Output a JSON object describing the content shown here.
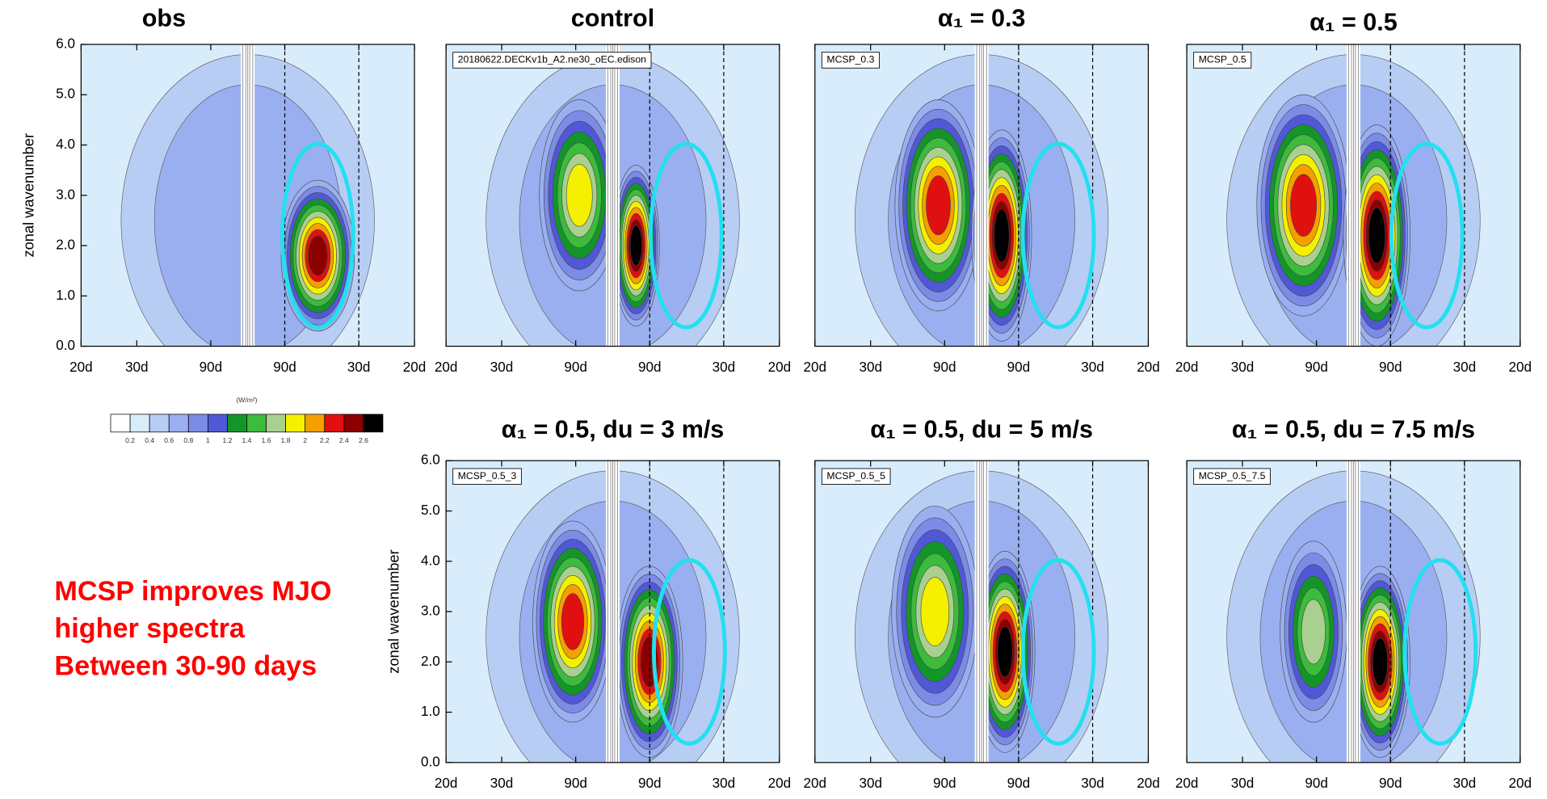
{
  "chart_data": [
    {
      "type": "contour",
      "title": "obs",
      "y_label": "zonal wavenumber",
      "xlim": [
        -0.05,
        0.05
      ],
      "xticks": [
        {
          "value": -0.05,
          "label": "20d"
        },
        {
          "value": -0.0333,
          "label": "30d"
        },
        {
          "value": -0.0111,
          "label": "90d"
        },
        {
          "value": 0.0111,
          "label": "90d"
        },
        {
          "value": 0.0333,
          "label": "30d"
        },
        {
          "value": 0.05,
          "label": "20d"
        }
      ],
      "ylim": [
        0,
        6
      ],
      "yticks": [
        {
          "value": 0,
          "label": "0.0"
        },
        {
          "value": 1,
          "label": "1.0"
        },
        {
          "value": 2,
          "label": "2.0"
        },
        {
          "value": 3,
          "label": "3.0"
        },
        {
          "value": 4,
          "label": "4.0"
        },
        {
          "value": 5,
          "label": "5.0"
        },
        {
          "value": 6,
          "label": "6.0"
        }
      ]
    },
    {
      "type": "contour",
      "title": "control",
      "label": "20180622.DECKv1b_A2.ne30_oEC.edison",
      "xlim": [
        -0.05,
        0.05
      ],
      "xticks": [
        {
          "value": -0.05,
          "label": "20d"
        },
        {
          "value": -0.0333,
          "label": "30d"
        },
        {
          "value": -0.0111,
          "label": "90d"
        },
        {
          "value": 0.0111,
          "label": "90d"
        },
        {
          "value": 0.0333,
          "label": "30d"
        },
        {
          "value": 0.05,
          "label": "20d"
        }
      ]
    },
    {
      "type": "contour",
      "title": "α₁ = 0.3",
      "label": "MCSP_0.3",
      "xlim": [
        -0.05,
        0.05
      ],
      "xticks": [
        {
          "value": -0.05,
          "label": "20d"
        },
        {
          "value": -0.0333,
          "label": "30d"
        },
        {
          "value": -0.0111,
          "label": "90d"
        },
        {
          "value": 0.0111,
          "label": "90d"
        },
        {
          "value": 0.0333,
          "label": "30d"
        },
        {
          "value": 0.05,
          "label": "20d"
        }
      ]
    },
    {
      "type": "contour",
      "title": "α₁ = 0.5",
      "label": "MCSP_0.5",
      "xlim": [
        -0.05,
        0.05
      ],
      "xticks": [
        {
          "value": -0.05,
          "label": "20d"
        },
        {
          "value": -0.0333,
          "label": "30d"
        },
        {
          "value": -0.0111,
          "label": "90d"
        },
        {
          "value": 0.0111,
          "label": "90d"
        },
        {
          "value": 0.0333,
          "label": "30d"
        },
        {
          "value": 0.05,
          "label": "20d"
        }
      ]
    },
    {
      "type": "contour",
      "title": "α₁ = 0.5, du = 3 m/s",
      "label": "MCSP_0.5_3",
      "y_label": "zonal wavenumber",
      "xlim": [
        -0.05,
        0.05
      ],
      "xticks": [
        {
          "value": -0.05,
          "label": "20d"
        },
        {
          "value": -0.0333,
          "label": "30d"
        },
        {
          "value": -0.0111,
          "label": "90d"
        },
        {
          "value": 0.0111,
          "label": "90d"
        },
        {
          "value": 0.0333,
          "label": "30d"
        },
        {
          "value": 0.05,
          "label": "20d"
        }
      ],
      "ylim": [
        0,
        6
      ],
      "yticks": [
        {
          "value": 0,
          "label": "0.0"
        },
        {
          "value": 1,
          "label": "1.0"
        },
        {
          "value": 2,
          "label": "2.0"
        },
        {
          "value": 3,
          "label": "3.0"
        },
        {
          "value": 4,
          "label": "4.0"
        },
        {
          "value": 5,
          "label": "5.0"
        },
        {
          "value": 6,
          "label": "6.0"
        }
      ]
    },
    {
      "type": "contour",
      "title": "α₁ = 0.5, du = 5 m/s",
      "label": "MCSP_0.5_5",
      "xlim": [
        -0.05,
        0.05
      ],
      "xticks": [
        {
          "value": -0.05,
          "label": "20d"
        },
        {
          "value": -0.0333,
          "label": "30d"
        },
        {
          "value": -0.0111,
          "label": "90d"
        },
        {
          "value": 0.0111,
          "label": "90d"
        },
        {
          "value": 0.0333,
          "label": "30d"
        },
        {
          "value": 0.05,
          "label": "20d"
        }
      ]
    },
    {
      "type": "contour",
      "title": "α₁ = 0.5, du = 7.5 m/s",
      "label": "MCSP_0.5_7.5",
      "xlim": [
        -0.05,
        0.05
      ],
      "xticks": [
        {
          "value": -0.05,
          "label": "20d"
        },
        {
          "value": -0.0333,
          "label": "30d"
        },
        {
          "value": -0.0111,
          "label": "90d"
        },
        {
          "value": 0.0111,
          "label": "90d"
        },
        {
          "value": 0.0333,
          "label": "30d"
        },
        {
          "value": 0.05,
          "label": "20d"
        }
      ]
    }
  ],
  "colorbar": {
    "units": "(W/m²)",
    "colors": [
      "#ffffff",
      "#d9ecfb",
      "#b8cdf4",
      "#9aafef",
      "#7c8ce6",
      "#5158d6",
      "#14952a",
      "#3cbb3c",
      "#a9d08f",
      "#f5f000",
      "#f5a000",
      "#e01010",
      "#8a0000",
      "#000000"
    ],
    "ticks": [
      0.2,
      0.4,
      0.6,
      0.8,
      1,
      1.2,
      1.4,
      1.6,
      1.8,
      2,
      2.2,
      2.4,
      2.6
    ]
  },
  "note": [
    "MCSP improves MJO",
    "higher spectra",
    "Between 30-90 days"
  ]
}
